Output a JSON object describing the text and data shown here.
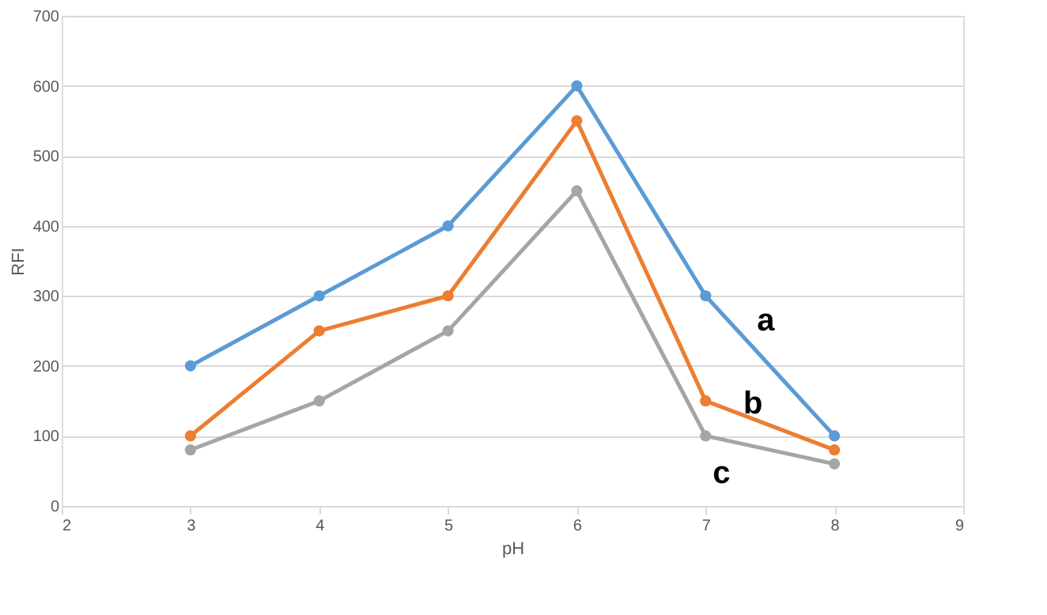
{
  "chart_data": {
    "type": "line",
    "xlabel": "pH",
    "ylabel": "RFI",
    "x": [
      3,
      4,
      5,
      6,
      7,
      8
    ],
    "series": [
      {
        "name": "a",
        "color": "#5b9bd5",
        "values": [
          200,
          300,
          400,
          600,
          300,
          100
        ]
      },
      {
        "name": "b",
        "color": "#ed7d31",
        "values": [
          100,
          250,
          300,
          550,
          150,
          80
        ]
      },
      {
        "name": "c",
        "color": "#a5a5a5",
        "values": [
          80,
          150,
          250,
          450,
          100,
          60
        ]
      }
    ],
    "xlim": [
      2,
      9
    ],
    "xticks": [
      2,
      3,
      4,
      5,
      6,
      7,
      8,
      9
    ],
    "ylim": [
      0,
      700
    ],
    "yticks": [
      0,
      100,
      200,
      300,
      400,
      500,
      600,
      700
    ],
    "grid": "y",
    "marker": "circle",
    "line_style": "solid"
  }
}
